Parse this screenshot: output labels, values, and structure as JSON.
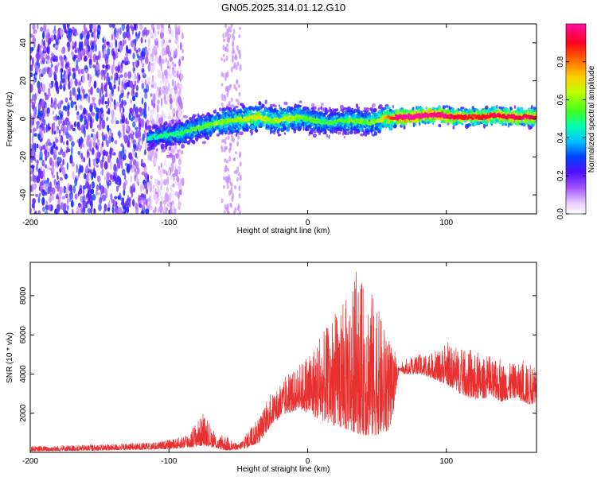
{
  "page": {
    "title": "GN05.2025.314.01.12.G10"
  },
  "chart_data": [
    {
      "type": "heatmap",
      "title": "GN05.2025.314.01.12.G10",
      "xlabel": "Height of straight line (km)",
      "ylabel": "Frequency (Hz)",
      "xlim": [
        -200,
        165
      ],
      "ylim": [
        -50,
        50
      ],
      "x_ticks": [
        -200,
        -100,
        0,
        100
      ],
      "x_tick_labels": [
        "-200",
        "-100",
        "0",
        "100"
      ],
      "y_ticks": [
        -40,
        -20,
        0,
        20,
        40
      ],
      "y_tick_labels": [
        "-40",
        "-20",
        "0",
        "20",
        "40"
      ],
      "colorbar": {
        "label": "Normalized spectral amplitude",
        "range": [
          0,
          1
        ],
        "ticks": [
          0.0,
          0.2,
          0.4,
          0.6,
          0.8
        ],
        "tick_labels": [
          "0.0",
          "0.2",
          "0.4",
          "0.6",
          "0.8"
        ],
        "colormap": "rainbow"
      },
      "ridge": {
        "description": "frequency centre of high-amplitude band vs height",
        "x": [
          -115,
          -105,
          -95,
          -85,
          -75,
          -65,
          -55,
          -45,
          -35,
          -25,
          -15,
          -5,
          5,
          15,
          25,
          35,
          45,
          55,
          65,
          75,
          85,
          95,
          105,
          115,
          125,
          135,
          145,
          155,
          165
        ],
        "freq": [
          -10,
          -9,
          -8,
          -6,
          -4,
          -2,
          -1,
          0,
          1,
          -1,
          0,
          1,
          -1,
          -2,
          -1,
          -1,
          -2,
          0,
          1,
          1,
          2,
          2,
          1,
          1,
          1,
          2,
          1,
          1,
          1
        ],
        "amplitude": [
          0.35,
          0.4,
          0.4,
          0.45,
          0.45,
          0.5,
          0.5,
          0.55,
          0.6,
          0.5,
          0.55,
          0.5,
          0.45,
          0.45,
          0.45,
          0.5,
          0.45,
          0.6,
          0.9,
          0.95,
          0.9,
          0.9,
          0.85,
          0.8,
          0.8,
          0.85,
          0.85,
          0.85,
          0.85
        ]
      },
      "noise_region": {
        "x_range": [
          -200,
          -100
        ],
        "amplitude": 0.25
      },
      "noise_strip": {
        "x_range": [
          -62,
          -48
        ],
        "amplitude": 0.1
      }
    },
    {
      "type": "line",
      "xlabel": "Height of straight line (km)",
      "ylabel": "SNR (10 * v/v)",
      "xlim": [
        -200,
        165
      ],
      "ylim": [
        0,
        9700
      ],
      "x_ticks": [
        -200,
        -100,
        0,
        100
      ],
      "x_tick_labels": [
        "-200",
        "-100",
        "0",
        "100"
      ],
      "y_ticks": [
        2000,
        4000,
        6000,
        8000
      ],
      "y_tick_labels": [
        "2000",
        "4000",
        "6000",
        "8000"
      ],
      "color": "#e83030",
      "envelope": {
        "x": [
          -200,
          -150,
          -110,
          -95,
          -85,
          -80,
          -75,
          -70,
          -65,
          -60,
          -55,
          -50,
          -45,
          -35,
          -30,
          -25,
          -15,
          -5,
          5,
          15,
          25,
          35,
          45,
          55,
          60,
          66,
          70,
          80,
          90,
          95,
          100,
          110,
          120,
          130,
          140,
          150,
          160,
          165
        ],
        "low": [
          50,
          100,
          150,
          200,
          250,
          300,
          350,
          300,
          200,
          100,
          100,
          150,
          200,
          500,
          1000,
          1500,
          2000,
          2200,
          1800,
          1500,
          1200,
          1000,
          800,
          1000,
          1200,
          4200,
          4000,
          4000,
          3800,
          3600,
          3500,
          3000,
          2700,
          2800,
          2600,
          2800,
          2400,
          2600
        ],
        "high": [
          300,
          400,
          500,
          700,
          1000,
          1600,
          1900,
          1300,
          700,
          900,
          600,
          400,
          900,
          1800,
          2500,
          3000,
          3800,
          4500,
          5500,
          6500,
          7500,
          8800,
          8500,
          6500,
          5500,
          4300,
          4500,
          5000,
          5000,
          5200,
          5500,
          5200,
          5000,
          4700,
          4600,
          4500,
          4500,
          4700
        ]
      }
    }
  ]
}
